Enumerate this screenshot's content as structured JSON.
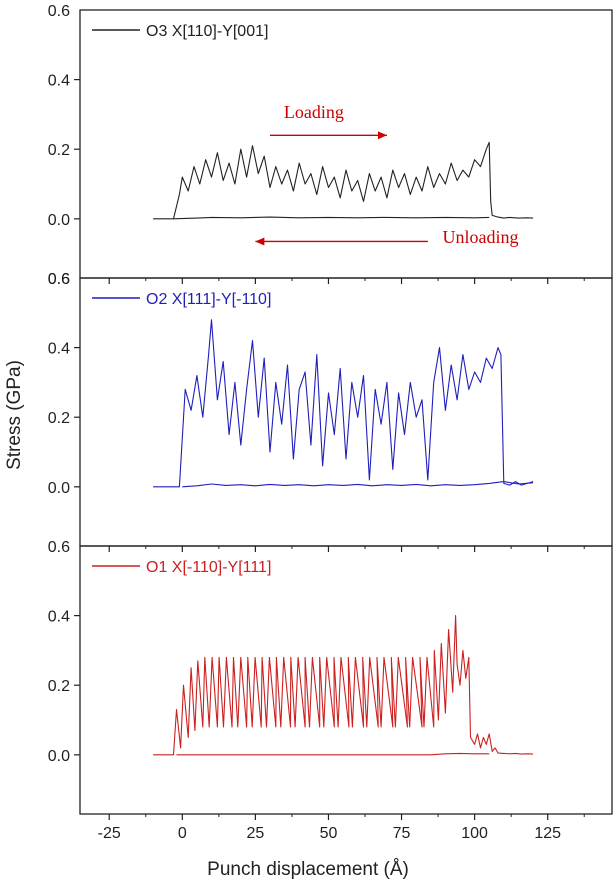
{
  "chart_data": {
    "type": "line",
    "xlabel": "Punch displacement (Å)",
    "ylabel": "Stress (GPa)",
    "xlim": [
      -35,
      147
    ],
    "xticks": [
      -25,
      0,
      25,
      50,
      75,
      100,
      125
    ],
    "colors": {
      "axis": "#222222",
      "annotation": "#cc0000"
    },
    "panels": [
      {
        "id": "o3",
        "legend": "O3 X[110]-Y[001]",
        "color": "#222222",
        "ylim": [
          -0.17,
          0.6
        ],
        "yticks": [
          0.0,
          0.2,
          0.4,
          0.6
        ],
        "bottom_label": "0.6",
        "annotations": [
          {
            "text": "Loading",
            "x": 45,
            "y": 0.29,
            "arrow_from": 30,
            "arrow_to": 70,
            "arrow_y": 0.24
          },
          {
            "text": "Unloading",
            "x": 102,
            "y": -0.07,
            "arrow_from": 84,
            "arrow_to": 25,
            "arrow_y": -0.065
          }
        ],
        "loading": {
          "x": [
            -10,
            -3,
            -1,
            0,
            2,
            4,
            6,
            8,
            10,
            12,
            14,
            16,
            18,
            20,
            22,
            24,
            26,
            28,
            30,
            32,
            34,
            36,
            38,
            40,
            42,
            44,
            46,
            48,
            50,
            52,
            54,
            56,
            58,
            60,
            62,
            64,
            66,
            68,
            70,
            72,
            74,
            76,
            78,
            80,
            82,
            84,
            86,
            88,
            90,
            92,
            94,
            96,
            98,
            100,
            102,
            104,
            105,
            105.5,
            106,
            108,
            110,
            112,
            115,
            118,
            120
          ],
          "y": [
            0,
            0,
            0.07,
            0.12,
            0.08,
            0.15,
            0.1,
            0.17,
            0.12,
            0.19,
            0.11,
            0.16,
            0.1,
            0.2,
            0.12,
            0.21,
            0.13,
            0.18,
            0.09,
            0.15,
            0.1,
            0.14,
            0.08,
            0.16,
            0.1,
            0.13,
            0.07,
            0.15,
            0.09,
            0.12,
            0.06,
            0.14,
            0.08,
            0.11,
            0.05,
            0.13,
            0.08,
            0.12,
            0.06,
            0.14,
            0.09,
            0.13,
            0.07,
            0.12,
            0.08,
            0.15,
            0.09,
            0.13,
            0.1,
            0.16,
            0.11,
            0.14,
            0.12,
            0.17,
            0.15,
            0.2,
            0.22,
            0.05,
            0.01,
            0.005,
            0.002,
            0.004,
            0.002,
            0.003,
            0.002
          ]
        },
        "unloading": {
          "x": [
            -3,
            5,
            10,
            20,
            30,
            40,
            50,
            60,
            70,
            80,
            90,
            100,
            105
          ],
          "y": [
            0,
            0.002,
            0.004,
            0.003,
            0.005,
            0.003,
            0.004,
            0.003,
            0.004,
            0.003,
            0.004,
            0.003,
            0.004
          ]
        }
      },
      {
        "id": "o2",
        "legend": "O2 X[111]-Y[-110]",
        "color": "#1f1fbb",
        "ylim": [
          -0.17,
          0.6
        ],
        "yticks": [
          0.0,
          0.2,
          0.4,
          0.6
        ],
        "annotations": [],
        "loading": {
          "x": [
            -10,
            -5,
            -1,
            1,
            3,
            5,
            7,
            9,
            10,
            12,
            14,
            16,
            18,
            20,
            22,
            24,
            26,
            28,
            30,
            32,
            34,
            36,
            38,
            40,
            42,
            44,
            46,
            48,
            50,
            52,
            54,
            56,
            58,
            60,
            62,
            64,
            66,
            68,
            70,
            72,
            74,
            76,
            78,
            80,
            82,
            84,
            86,
            88,
            90,
            92,
            94,
            96,
            98,
            100,
            102,
            104,
            106,
            108,
            109,
            110,
            112,
            114,
            116,
            118,
            120
          ],
          "y": [
            0,
            0,
            0,
            0.28,
            0.22,
            0.32,
            0.2,
            0.38,
            0.48,
            0.25,
            0.36,
            0.15,
            0.3,
            0.12,
            0.28,
            0.42,
            0.2,
            0.37,
            0.1,
            0.3,
            0.18,
            0.35,
            0.08,
            0.28,
            0.33,
            0.12,
            0.38,
            0.06,
            0.27,
            0.15,
            0.34,
            0.08,
            0.3,
            0.2,
            0.32,
            0.02,
            0.28,
            0.18,
            0.3,
            0.05,
            0.27,
            0.15,
            0.3,
            0.2,
            0.25,
            0.02,
            0.3,
            0.4,
            0.22,
            0.35,
            0.25,
            0.38,
            0.28,
            0.33,
            0.3,
            0.37,
            0.34,
            0.4,
            0.38,
            0.01,
            0.005,
            0.015,
            0.005,
            0.01,
            0.015
          ]
        },
        "unloading": {
          "x": [
            0,
            5,
            10,
            15,
            20,
            25,
            30,
            35,
            40,
            45,
            50,
            55,
            60,
            65,
            70,
            75,
            80,
            85,
            90,
            95,
            100,
            105,
            110,
            115,
            120
          ],
          "y": [
            0,
            0.003,
            0.008,
            0.004,
            0.006,
            0.003,
            0.007,
            0.004,
            0.006,
            0.003,
            0.006,
            0.004,
            0.007,
            0.003,
            0.006,
            0.004,
            0.007,
            0.003,
            0.006,
            0.004,
            0.006,
            0.01,
            0.015,
            0.008,
            0.012
          ]
        }
      },
      {
        "id": "o1",
        "legend": "O1 X[-110]-Y[111]",
        "color": "#cc2020",
        "ylim": [
          -0.17,
          0.6
        ],
        "yticks": [
          0.0,
          0.2,
          0.4,
          0.6
        ],
        "annotations": [],
        "loading": {
          "x": [
            -10,
            -3,
            -2,
            -0.6,
            0.4,
            2,
            3,
            4.3,
            5.3,
            7,
            7.7,
            9.2,
            10.2,
            12,
            12.6,
            14.1,
            15.1,
            17,
            17.5,
            19,
            20,
            22,
            22.4,
            23.9,
            24.9,
            27,
            27.3,
            28.8,
            29.8,
            32,
            32.2,
            33.7,
            34.7,
            37,
            37.1,
            38.6,
            39.6,
            42,
            42,
            43.5,
            44.5,
            47,
            47,
            48.4,
            49.4,
            52,
            51.9,
            53.3,
            54.3,
            57,
            56.8,
            58.2,
            59.2,
            62,
            61.7,
            63.1,
            64.1,
            67,
            66.6,
            68,
            69,
            72,
            71.5,
            72.9,
            73.9,
            77,
            76.4,
            77.8,
            78.8,
            82,
            81.3,
            82.7,
            83.7,
            86,
            86.2,
            87.6,
            88.6,
            90,
            91.1,
            92.5,
            93.5,
            94,
            95,
            96,
            97,
            98,
            98.6,
            100,
            101,
            102,
            103,
            104,
            105,
            106,
            107,
            108,
            110,
            112,
            114,
            116,
            118,
            120
          ],
          "y": [
            0,
            0,
            0.13,
            0.02,
            0.2,
            0.05,
            0.25,
            0.07,
            0.27,
            0.08,
            0.28,
            0.08,
            0.28,
            0.08,
            0.28,
            0.08,
            0.28,
            0.08,
            0.28,
            0.08,
            0.28,
            0.08,
            0.28,
            0.08,
            0.28,
            0.08,
            0.28,
            0.08,
            0.28,
            0.08,
            0.28,
            0.08,
            0.28,
            0.08,
            0.28,
            0.08,
            0.28,
            0.08,
            0.28,
            0.08,
            0.28,
            0.08,
            0.28,
            0.08,
            0.28,
            0.08,
            0.28,
            0.08,
            0.28,
            0.08,
            0.28,
            0.08,
            0.28,
            0.08,
            0.28,
            0.08,
            0.28,
            0.08,
            0.28,
            0.08,
            0.28,
            0.08,
            0.28,
            0.08,
            0.28,
            0.08,
            0.28,
            0.08,
            0.28,
            0.08,
            0.28,
            0.08,
            0.28,
            0.08,
            0.3,
            0.1,
            0.32,
            0.12,
            0.36,
            0.18,
            0.4,
            0.26,
            0.2,
            0.3,
            0.22,
            0.28,
            0.05,
            0.03,
            0.06,
            0.02,
            0.05,
            0.03,
            0.06,
            0.01,
            0.02,
            0.005,
            0.004,
            0.003,
            0.004,
            0.002,
            0.003,
            0.002
          ]
        },
        "unloading": {
          "x": [
            -2,
            10,
            30,
            50,
            70,
            85,
            90,
            95,
            100,
            105
          ],
          "y": [
            0,
            0,
            0,
            0,
            0,
            0,
            0.003,
            0.004,
            0.003,
            0.003
          ]
        }
      }
    ]
  }
}
